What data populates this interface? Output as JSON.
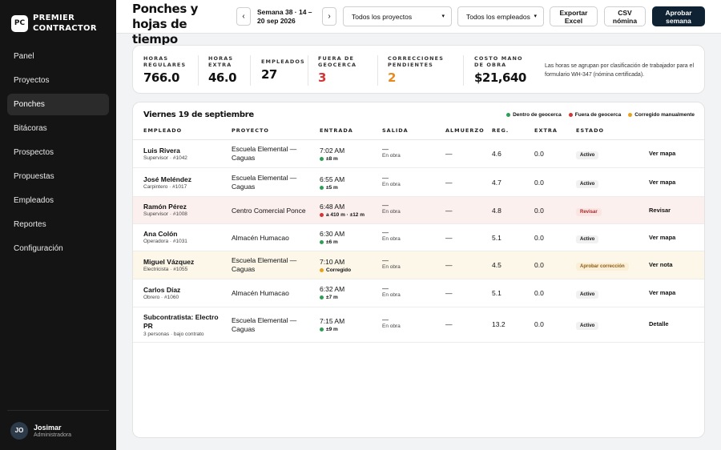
{
  "brand": {
    "logo": "PC",
    "name_line1": "PREMIER",
    "name_line2": "CONTRACTOR"
  },
  "nav": [
    {
      "label": "Panel"
    },
    {
      "label": "Proyectos"
    },
    {
      "label": "Ponches",
      "active": true
    },
    {
      "label": "Bitácoras"
    },
    {
      "label": "Prospectos"
    },
    {
      "label": "Propuestas"
    },
    {
      "label": "Empleados"
    },
    {
      "label": "Reportes"
    },
    {
      "label": "Configuración"
    }
  ],
  "user": {
    "initials": "JO",
    "name": "Josimar",
    "role": "Administradora"
  },
  "header": {
    "title": "Ponches y hojas de tiempo",
    "prev_icon": "‹",
    "next_icon": "›",
    "week_label": "Semana 38 · 14 – 20 sep 2026",
    "project_filter": "Todos los proyectos",
    "employee_filter": "Todos los empleados",
    "export_label": "Exportar Excel",
    "csv_label": "CSV nómina",
    "approve_label": "Aprobar semana"
  },
  "stats": {
    "regular_label": "HORAS REGULARES",
    "regular_value": "766.0",
    "extra_label": "HORAS EXTRA",
    "extra_value": "46.0",
    "employees_label": "EMPLEADOS",
    "employees_value": "27",
    "geofence_label": "FUERA DE GEOCERCA",
    "geofence_value": "3",
    "corrections_label": "CORRECCIONES PENDIENTES",
    "corrections_value": "2",
    "labor_cost_label": "COSTO MANO DE OBRA",
    "labor_cost_value": "$21,640",
    "note": "Las horas se agrupan por clasificación de trabajador para el formulario WH-347 (nómina certificada)."
  },
  "table": {
    "day_title": "Viernes 19 de septiembre",
    "legend": [
      {
        "label": "Dentro de geocerca",
        "color": "#2e9e57"
      },
      {
        "label": "Fuera de geocerca",
        "color": "#d33636"
      },
      {
        "label": "Corregido manualmente",
        "color": "#e8a11c"
      }
    ],
    "headers": {
      "employee": "EMPLEADO",
      "project": "PROYECTO",
      "entry": "ENTRADA",
      "exit": "SALIDA",
      "lunch": "ALMUERZO",
      "reg": "REG.",
      "extra": "EXTRA",
      "status": "ESTADO"
    },
    "rows": [
      {
        "name": "Luis Rivera",
        "sub": "Supervisor · #1042",
        "project": "Escuela Elemental — Caguas",
        "entry": "7:02 AM",
        "entry_meta": "±8 m",
        "dot": "#2e9e57",
        "exit": "—",
        "exit_sub": "En obra",
        "lunch": "—",
        "reg": "4.6",
        "extra": "0.0",
        "status": "Activo",
        "action": "Ver mapa"
      },
      {
        "name": "José Meléndez",
        "sub": "Carpintero · #1017",
        "project": "Escuela Elemental — Caguas",
        "entry": "6:55 AM",
        "entry_meta": "±5 m",
        "dot": "#2e9e57",
        "exit": "—",
        "exit_sub": "En obra",
        "lunch": "—",
        "reg": "4.7",
        "extra": "0.0",
        "status": "Activo",
        "action": "Ver mapa"
      },
      {
        "name": "Ramón Pérez",
        "sub": "Supervisor · #1008",
        "project": "Centro Comercial Ponce",
        "entry": "6:48 AM",
        "entry_meta": "a 410 m · ±12 m",
        "dot": "#d33636",
        "exit": "—",
        "exit_sub": "En obra",
        "lunch": "—",
        "reg": "4.8",
        "extra": "0.0",
        "status": "Revisar",
        "action": "Revisar"
      },
      {
        "name": "Ana Colón",
        "sub": "Operadora · #1031",
        "project": "Almacén Humacao",
        "entry": "6:30 AM",
        "entry_meta": "±6 m",
        "dot": "#2e9e57",
        "exit": "—",
        "exit_sub": "En obra",
        "lunch": "—",
        "reg": "5.1",
        "extra": "0.0",
        "status": "Activo",
        "action": "Ver mapa"
      },
      {
        "name": "Miguel Vázquez",
        "sub": "Electricista · #1055",
        "project": "Escuela Elemental — Caguas",
        "entry": "7:10 AM",
        "entry_meta": "Corregido",
        "dot": "#e8a11c",
        "exit": "—",
        "exit_sub": "En obra",
        "lunch": "—",
        "reg": "4.5",
        "extra": "0.0",
        "status": "Aprobar corrección",
        "action": "Ver nota"
      },
      {
        "name": "Carlos Díaz",
        "sub": "Obrero · #1060",
        "project": "Almacén Humacao",
        "entry": "6:32 AM",
        "entry_meta": "±7 m",
        "dot": "#2e9e57",
        "exit": "—",
        "exit_sub": "En obra",
        "lunch": "—",
        "reg": "5.1",
        "extra": "0.0",
        "status": "Activo",
        "action": "Ver mapa"
      },
      {
        "name": "Subcontratista: Electro PR",
        "sub": "3 personas · bajo contrato",
        "project": "Escuela Elemental — Caguas",
        "entry": "7:15 AM",
        "entry_meta": "±9 m",
        "dot": "#2e9e57",
        "exit": "—",
        "exit_sub": "En obra",
        "lunch": "—",
        "reg": "13.2",
        "extra": "0.0",
        "status": "Activo",
        "action": "Detalle"
      }
    ]
  }
}
